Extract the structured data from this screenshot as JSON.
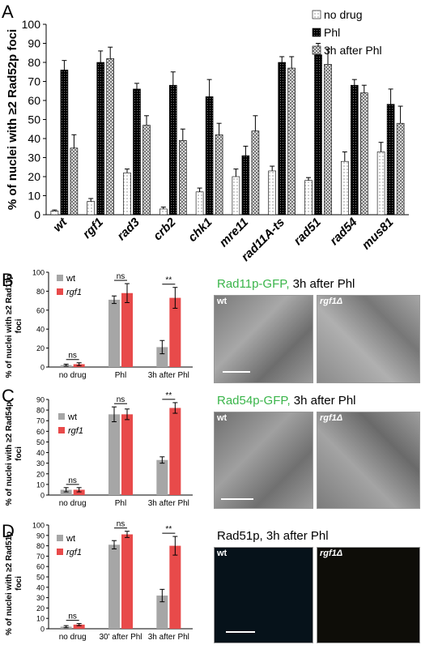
{
  "panels": {
    "A": {
      "letter": "A"
    },
    "B": {
      "letter": "B",
      "image_label_green": "Rad11p-GFP,",
      "image_label_rest": " 3h after Phl",
      "img_wt": "wt",
      "img_mut": "rgf1Δ"
    },
    "C": {
      "letter": "C",
      "image_label_green": "Rad54p-GFP,",
      "image_label_rest": " 3h after Phl",
      "img_wt": "wt",
      "img_mut": "rgf1Δ"
    },
    "D": {
      "letter": "D",
      "image_label_green": "",
      "image_label_rest": "Rad51p, 3h after Phl",
      "img_wt": "wt",
      "img_mut": "rgf1Δ"
    }
  },
  "chart_data": [
    {
      "id": "A",
      "type": "bar",
      "ylabel": "% of nuclei with ≥2 Rad52p  foci",
      "ylim": [
        0,
        100
      ],
      "yticks": [
        0,
        10,
        20,
        30,
        40,
        50,
        60,
        70,
        80,
        90,
        100
      ],
      "categories": [
        "wt",
        "rgf1",
        "rad3",
        "crb2",
        "chk1",
        "mre11",
        "rad11A-ts",
        "rad51",
        "rad54",
        "mus81"
      ],
      "series": [
        {
          "name": "no drug",
          "pattern": "dots-light",
          "values": [
            2,
            7,
            22,
            3,
            12,
            20,
            23,
            18,
            28,
            33
          ],
          "errors": [
            0.5,
            1.5,
            2,
            1,
            2,
            4,
            2.5,
            1.5,
            5,
            5
          ]
        },
        {
          "name": "Phl",
          "pattern": "dots-dark",
          "values": [
            76,
            80,
            66,
            68,
            62,
            31,
            80,
            84,
            68,
            58
          ],
          "errors": [
            5,
            6,
            3,
            7,
            9,
            5,
            3,
            6,
            3,
            8
          ]
        },
        {
          "name": "3h after Phl",
          "pattern": "checker",
          "values": [
            35,
            82,
            47,
            39,
            42,
            44,
            77,
            79,
            64,
            48
          ],
          "errors": [
            7,
            6,
            5,
            6,
            6,
            8,
            6,
            8,
            4,
            9
          ]
        }
      ],
      "legend_position": "top-right",
      "legend": [
        "no drug",
        "Phl",
        "3h after Phl"
      ]
    },
    {
      "id": "B",
      "type": "bar",
      "ylabel": "% of nuclei with ≥2 Rad11p foci",
      "ylim": [
        0,
        100
      ],
      "yticks": [
        0,
        20,
        40,
        60,
        80,
        100
      ],
      "categories": [
        "no drug",
        "Phl",
        "3h after Phl"
      ],
      "series": [
        {
          "name": "wt",
          "color": "#a6a6a6",
          "values": [
            2,
            71,
            21
          ],
          "errors": [
            1,
            4,
            7
          ]
        },
        {
          "name": "rgf1",
          "color": "#e84a4a",
          "values": [
            3,
            78,
            73
          ],
          "errors": [
            1.5,
            10,
            11
          ]
        }
      ],
      "significance": [
        "ns",
        "ns",
        "**"
      ],
      "legend_position": "top-left"
    },
    {
      "id": "C",
      "type": "bar",
      "ylabel": "% of nuclei with ≥2 Rad54p foci",
      "ylim": [
        0,
        90
      ],
      "yticks": [
        0,
        10,
        20,
        30,
        40,
        50,
        60,
        70,
        80,
        90
      ],
      "categories": [
        "no drug",
        "Phl",
        "3h after Phl"
      ],
      "series": [
        {
          "name": "wt",
          "color": "#a6a6a6",
          "values": [
            5,
            76,
            33
          ],
          "errors": [
            2,
            7,
            3
          ]
        },
        {
          "name": "rgf1",
          "color": "#e84a4a",
          "values": [
            5,
            76,
            82
          ],
          "errors": [
            2,
            5,
            5
          ]
        }
      ],
      "significance": [
        "ns",
        "ns",
        "**"
      ],
      "legend_position": "top-left"
    },
    {
      "id": "D",
      "type": "bar",
      "ylabel": "% of nuclei with ≥2 Rad51p foci",
      "ylim": [
        0,
        100
      ],
      "yticks": [
        0,
        10,
        20,
        30,
        40,
        50,
        60,
        70,
        80,
        90,
        100
      ],
      "categories": [
        "no drug",
        "30' after Phl",
        "3h after Phl"
      ],
      "series": [
        {
          "name": "wt",
          "color": "#a6a6a6",
          "values": [
            2,
            81,
            32
          ],
          "errors": [
            1,
            4,
            6
          ]
        },
        {
          "name": "rgf1",
          "color": "#e84a4a",
          "values": [
            4,
            91,
            80
          ],
          "errors": [
            1,
            3,
            9
          ]
        }
      ],
      "significance": [
        "ns",
        "ns",
        "**"
      ],
      "legend_position": "top-left"
    }
  ]
}
